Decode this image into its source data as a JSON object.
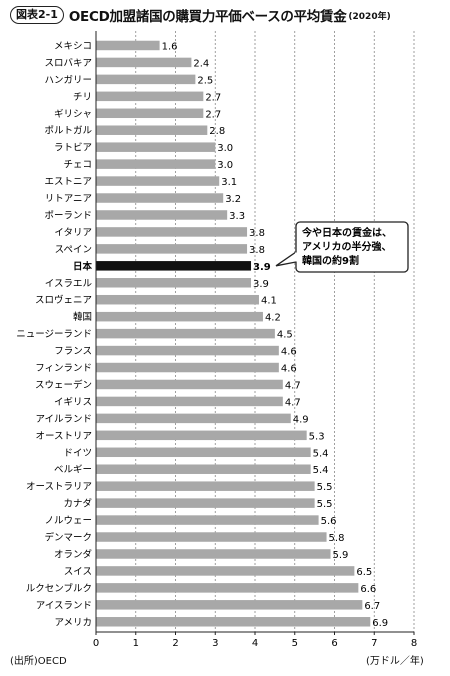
{
  "header": {
    "figure_label": "図表2-1",
    "title": "OECD加盟諸国の購買力平価ベースの平均賃金",
    "subtitle": "(2020年)"
  },
  "footer": {
    "source": "(出所)OECD",
    "unit": "(万ドル／年)"
  },
  "callout": {
    "lines": [
      "今や日本の賃金は、",
      "アメリカの半分強、",
      "韓国の約9割"
    ]
  },
  "colors": {
    "bar": "#a8a8a8",
    "highlight_bar": "#111111",
    "grid": "#888888"
  },
  "chart_data": {
    "type": "bar",
    "orientation": "horizontal",
    "categories": [
      "メキシコ",
      "スロバキア",
      "ハンガリー",
      "チリ",
      "ギリシャ",
      "ポルトガル",
      "ラトビア",
      "チェコ",
      "エストニア",
      "リトアニア",
      "ポーランド",
      "イタリア",
      "スペイン",
      "日本",
      "イスラエル",
      "スロヴェニア",
      "韓国",
      "ニュージーランド",
      "フランス",
      "フィンランド",
      "スウェーデン",
      "イギリス",
      "アイルランド",
      "オーストリア",
      "ドイツ",
      "ベルギー",
      "オーストラリア",
      "カナダ",
      "ノルウェー",
      "デンマーク",
      "オランダ",
      "スイス",
      "ルクセンブルク",
      "アイスランド",
      "アメリカ"
    ],
    "values": [
      1.6,
      2.4,
      2.5,
      2.7,
      2.7,
      2.8,
      3.0,
      3.0,
      3.1,
      3.2,
      3.3,
      3.8,
      3.8,
      3.9,
      3.9,
      4.1,
      4.2,
      4.5,
      4.6,
      4.6,
      4.7,
      4.7,
      4.9,
      5.3,
      5.4,
      5.4,
      5.5,
      5.5,
      5.6,
      5.8,
      5.9,
      6.5,
      6.6,
      6.7,
      6.9
    ],
    "value_labels": [
      "1.6",
      "2.4",
      "2.5",
      "2.7",
      "2.7",
      "2.8",
      "3.0",
      "3.0",
      "3.1",
      "3.2",
      "3.3",
      "3.8",
      "3.8",
      "3.9",
      "3.9",
      "4.1",
      "4.2",
      "4.5",
      "4.6",
      "4.6",
      "4.7",
      "4.7",
      "4.9",
      "5.3",
      "5.4",
      "5.4",
      "5.5",
      "5.5",
      "5.6",
      "5.8",
      "5.9",
      "6.5",
      "6.6",
      "6.7",
      "6.9"
    ],
    "highlight": "日本",
    "xlim": [
      0,
      8
    ],
    "xticks": [
      "0",
      "1",
      "2",
      "3",
      "4",
      "5",
      "6",
      "7",
      "8"
    ],
    "grid": "vertical dashed"
  }
}
